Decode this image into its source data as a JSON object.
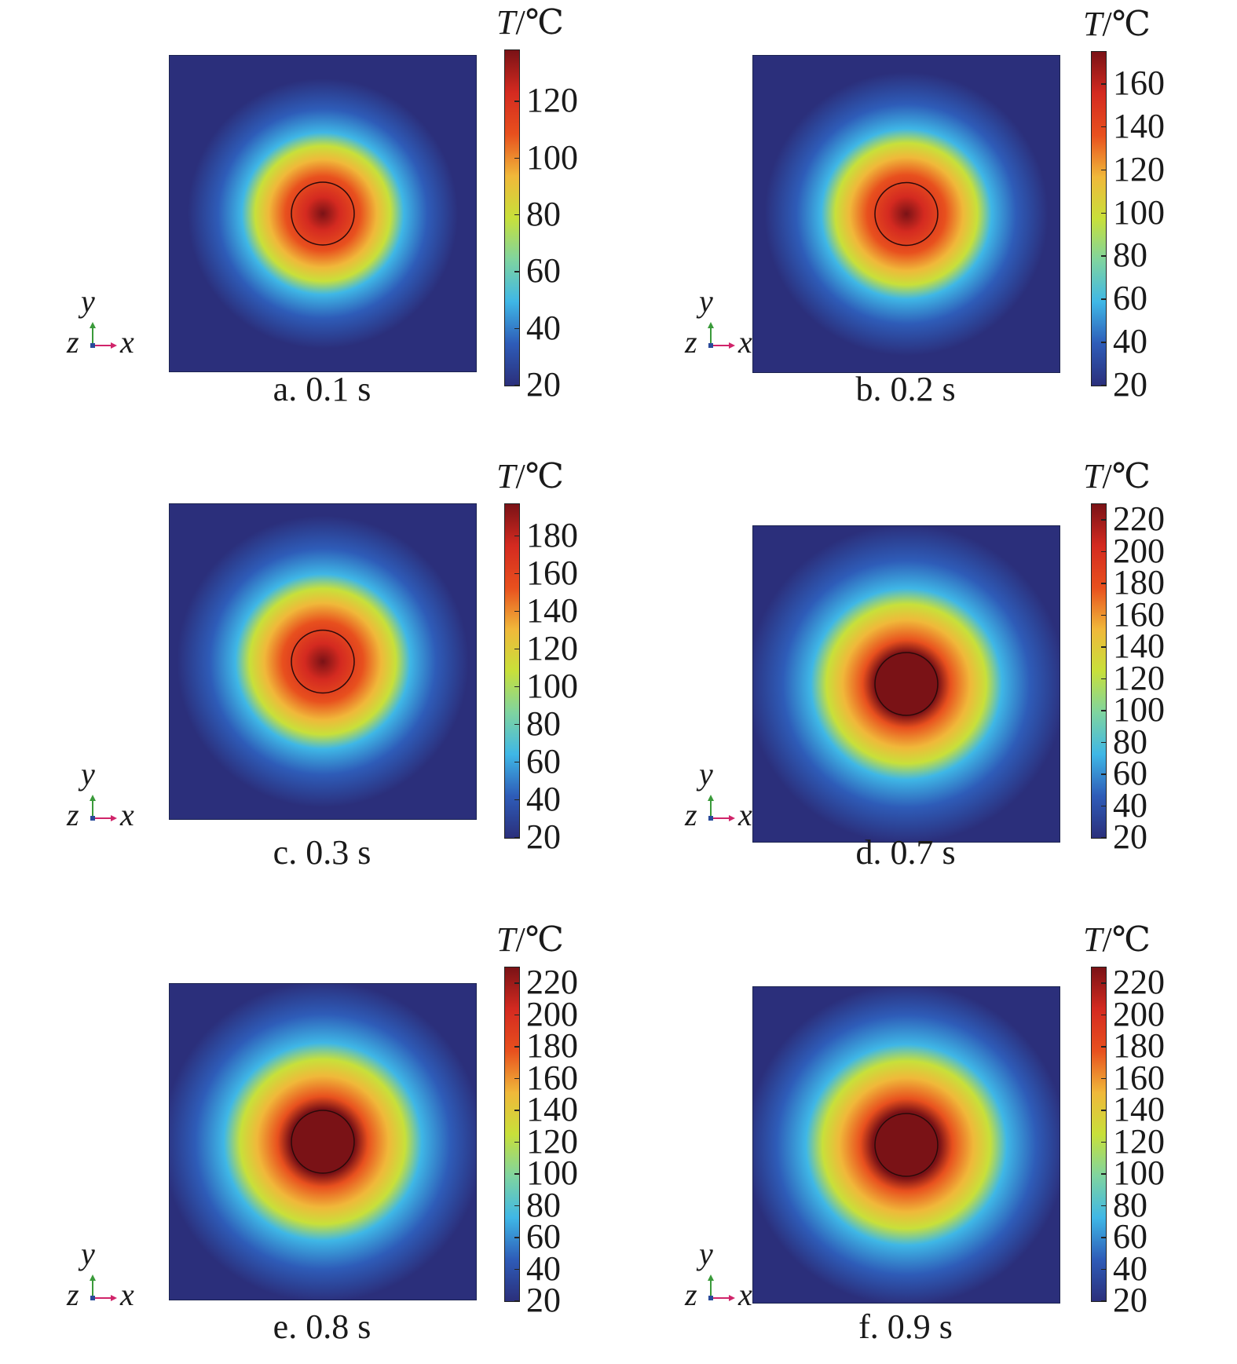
{
  "figure": {
    "colormap": [
      "#2b2f7b",
      "#2e5cb8",
      "#3fb7e6",
      "#7fd4a0",
      "#c8e03a",
      "#f0b83a",
      "#e8501e",
      "#d42a20",
      "#7a1216"
    ],
    "triad": {
      "y": "y",
      "z": "z",
      "x": "x",
      "y_color": "#3a9a3a",
      "x_color": "#d0246a",
      "z_color": "#2a4a9a"
    }
  },
  "chart_data": [
    {
      "type": "heatmap",
      "caption": "a. 0.1 s",
      "colorbar_title_var": "T",
      "colorbar_title_unit": "/℃",
      "colorbar_ticks": [
        "120",
        "100",
        "80",
        "60",
        "40",
        "20"
      ],
      "range": [
        20,
        138
      ],
      "peak_temperature": 138
    },
    {
      "type": "heatmap",
      "caption": "b. 0.2 s",
      "colorbar_title_var": "T",
      "colorbar_title_unit": "/℃",
      "colorbar_ticks": [
        "160",
        "140",
        "120",
        "100",
        "80",
        "60",
        "40",
        "20"
      ],
      "range": [
        20,
        175
      ],
      "peak_temperature": 175
    },
    {
      "type": "heatmap",
      "caption": "c. 0.3 s",
      "colorbar_title_var": "T",
      "colorbar_title_unit": "/℃",
      "colorbar_ticks": [
        "180",
        "160",
        "140",
        "120",
        "100",
        "80",
        "60",
        "40",
        "20"
      ],
      "range": [
        20,
        197
      ],
      "peak_temperature": 197
    },
    {
      "type": "heatmap",
      "caption": "d. 0.7 s",
      "colorbar_title_var": "T",
      "colorbar_title_unit": "/℃",
      "colorbar_ticks": [
        "220",
        "200",
        "180",
        "160",
        "140",
        "120",
        "100",
        "80",
        "60",
        "40",
        "20"
      ],
      "range": [
        20,
        230
      ],
      "peak_temperature": 230
    },
    {
      "type": "heatmap",
      "caption": "e. 0.8 s",
      "colorbar_title_var": "T",
      "colorbar_title_unit": "/℃",
      "colorbar_ticks": [
        "220",
        "200",
        "180",
        "160",
        "140",
        "120",
        "100",
        "80",
        "60",
        "40",
        "20"
      ],
      "range": [
        20,
        230
      ],
      "peak_temperature": 230
    },
    {
      "type": "heatmap",
      "caption": "f. 0.9 s",
      "colorbar_title_var": "T",
      "colorbar_title_unit": "/℃",
      "colorbar_ticks": [
        "220",
        "200",
        "180",
        "160",
        "140",
        "120",
        "100",
        "80",
        "60",
        "40",
        "20"
      ],
      "range": [
        20,
        230
      ],
      "peak_temperature": 230
    }
  ]
}
